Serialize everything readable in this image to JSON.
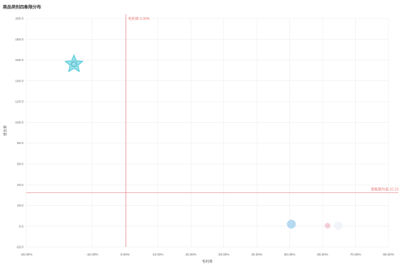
{
  "title": "商品类别四象限分布",
  "chart_data": {
    "type": "scatter",
    "title": "商品类别四象限分布",
    "xlabel": "毛利率",
    "ylabel": "增长率",
    "xlim": [
      -30,
      80
    ],
    "ylim": [
      -20,
      200
    ],
    "x_ticks": [
      {
        "value": -30,
        "label": "-30.00%"
      },
      {
        "value": -10,
        "label": "-10.00%"
      },
      {
        "value": 0,
        "label": "0.00%"
      },
      {
        "value": 10,
        "label": "10.00%"
      },
      {
        "value": 20,
        "label": "20.00%"
      },
      {
        "value": 30,
        "label": "30.00%"
      },
      {
        "value": 40,
        "label": "40.00%"
      },
      {
        "value": 50,
        "label": "50.00%"
      },
      {
        "value": 60,
        "label": "60.00%"
      },
      {
        "value": 70,
        "label": "70.00%"
      },
      {
        "value": 80,
        "label": "80.00%"
      }
    ],
    "y_ticks": [
      {
        "value": -20,
        "label": "-20.0"
      },
      {
        "value": 0,
        "label": "0.0"
      },
      {
        "value": 20,
        "label": "20.0"
      },
      {
        "value": 40,
        "label": "40.0"
      },
      {
        "value": 60,
        "label": "60.0"
      },
      {
        "value": 80,
        "label": "80.0"
      },
      {
        "value": 100,
        "label": "100.0"
      },
      {
        "value": 120,
        "label": "120.0"
      },
      {
        "value": 140,
        "label": "140.0"
      },
      {
        "value": 160,
        "label": "160.0"
      },
      {
        "value": 180,
        "label": "180.0"
      },
      {
        "value": 200,
        "label": "200.0"
      }
    ],
    "grid": true,
    "reference_lines": [
      {
        "axis": "x",
        "value": 0.3,
        "label": "毛利率 0.30%",
        "color": "#e88080"
      },
      {
        "axis": "y",
        "value": 32.23,
        "label": "销售额均值 32.23",
        "color": "#e88080"
      }
    ],
    "points": [
      {
        "x": -15.5,
        "y": 156,
        "shape": "star",
        "size": 3.2,
        "color": "#46c8d8"
      },
      {
        "x": 50.5,
        "y": 2,
        "shape": "circle",
        "size": 1.5,
        "color": "#a9d3ee"
      },
      {
        "x": 61.5,
        "y": 0.5,
        "shape": "circle",
        "size": 0.9,
        "color": "#f2c4cf"
      },
      {
        "x": 64.8,
        "y": 0.5,
        "shape": "circle",
        "size": 1.4,
        "color": "#eef3f8"
      }
    ]
  }
}
